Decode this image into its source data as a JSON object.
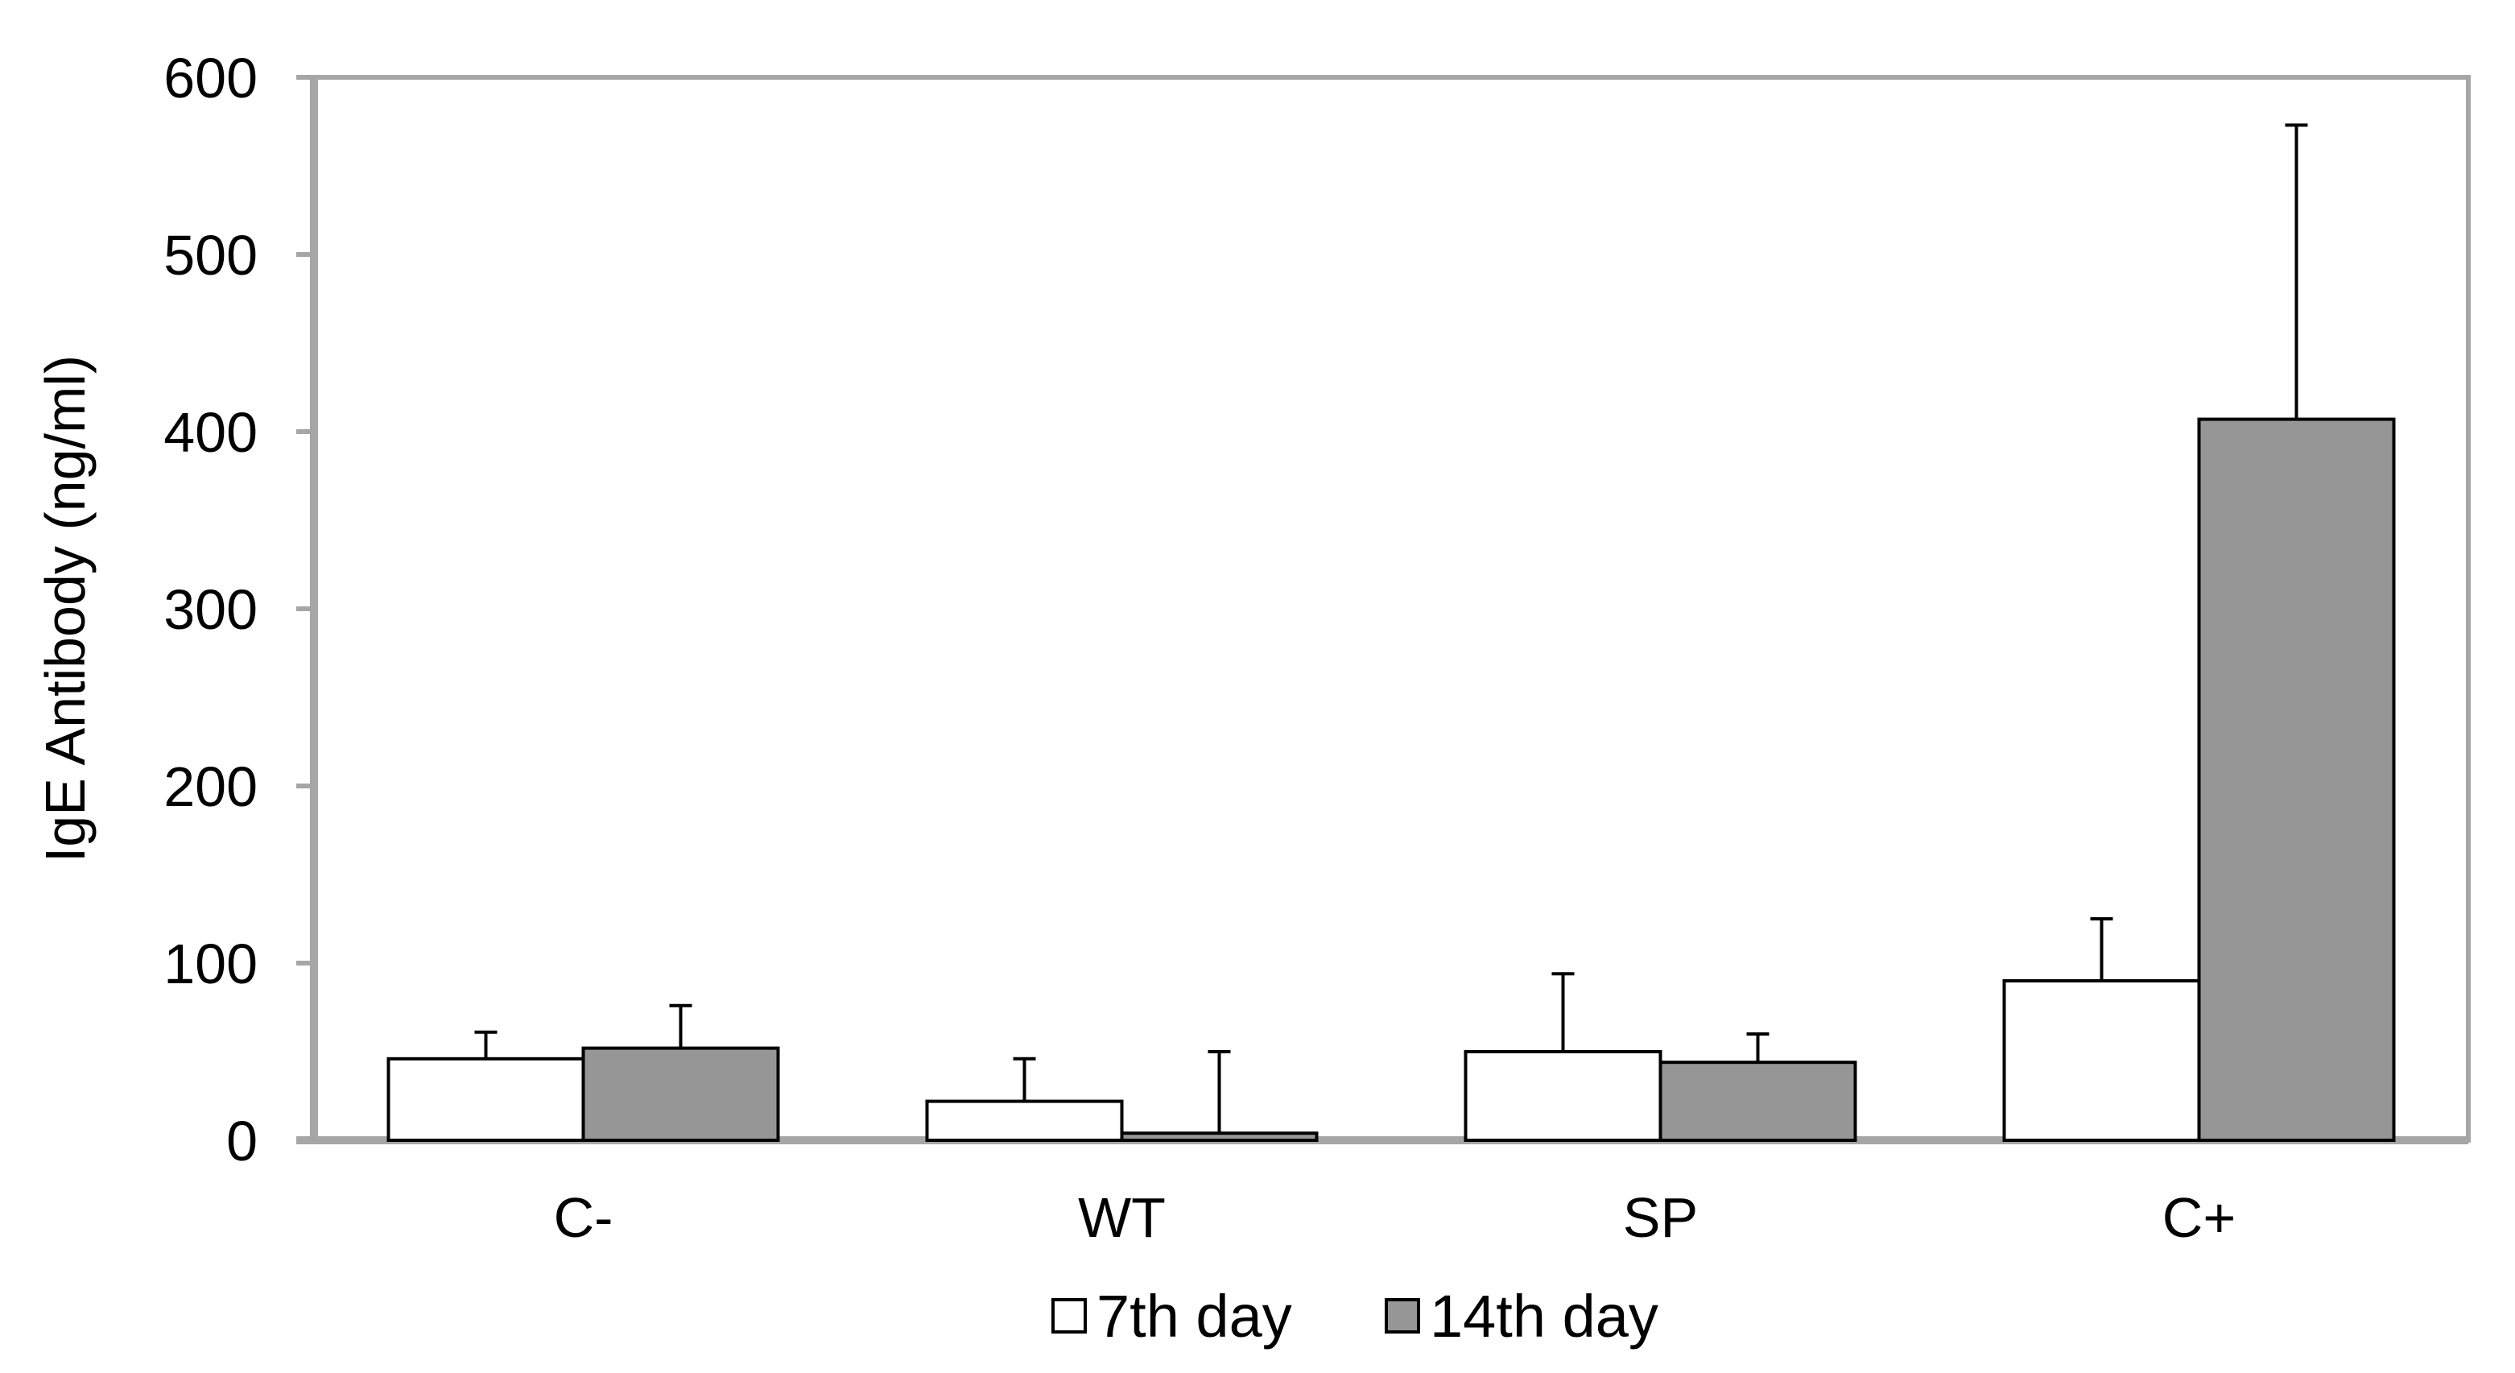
{
  "chart_data": {
    "type": "bar",
    "title": "",
    "xlabel": "",
    "ylabel": "IgE Antibody (ng/ml)",
    "ylim": [
      0,
      600
    ],
    "yticks": [
      0,
      100,
      200,
      300,
      400,
      500,
      600
    ],
    "grid": false,
    "legend_position": "bottom-center",
    "categories": [
      "C-",
      "WT",
      "SP",
      "C+"
    ],
    "series": [
      {
        "name": "7th day",
        "color": "#ffffff",
        "values": [
          46,
          22,
          50,
          90
        ],
        "errors": [
          15,
          24,
          44,
          35
        ]
      },
      {
        "name": "14th day",
        "color": "#969696",
        "values": [
          52,
          4,
          44,
          407
        ],
        "errors": [
          24,
          46,
          16,
          166
        ]
      }
    ]
  }
}
